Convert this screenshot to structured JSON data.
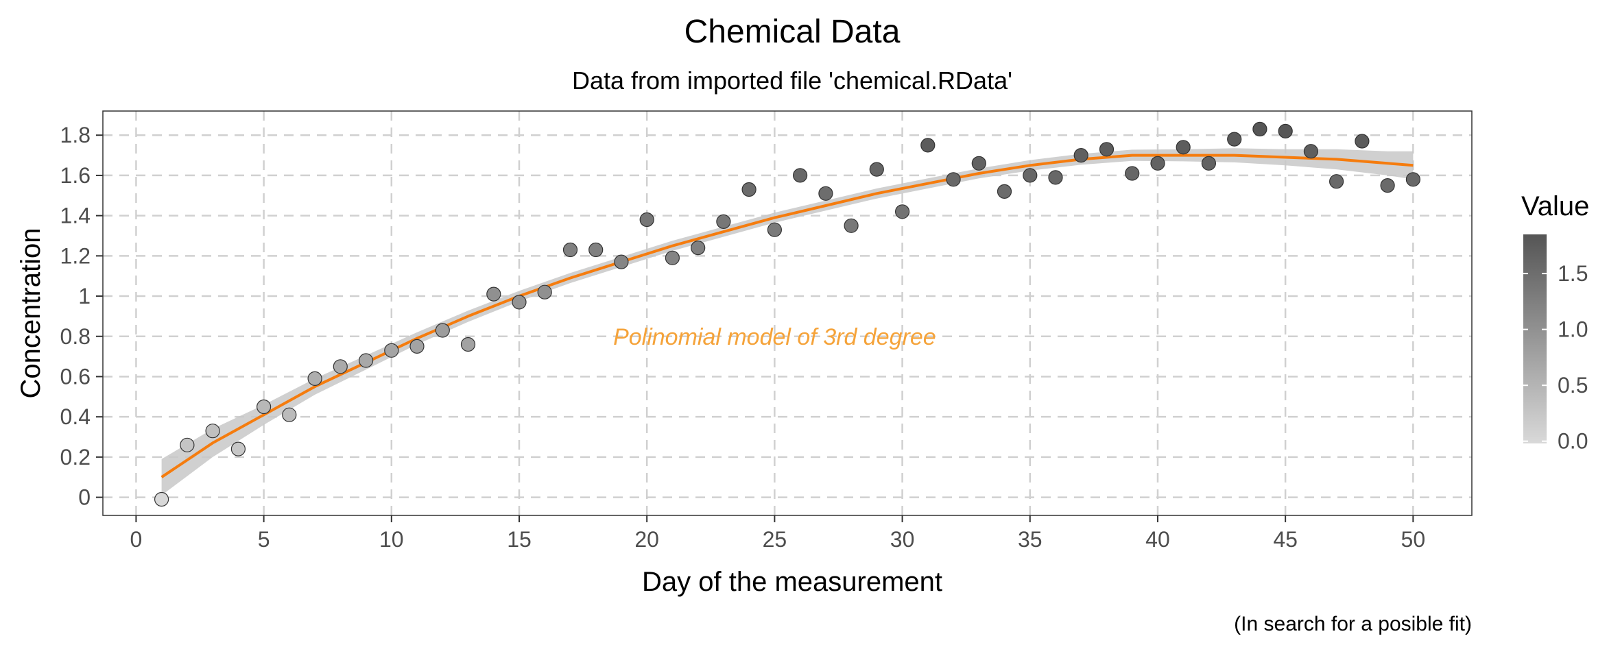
{
  "chart_data": {
    "type": "scatter",
    "title": "Chemical Data",
    "subtitle": "Data from imported file 'chemical.RData'",
    "xlabel": "Day of the measurement",
    "ylabel": "Concentration",
    "caption": "(In search for a posible fit)",
    "annotation": "Polinomial model of 3rd degree",
    "xlim": [
      -1.3,
      52.3
    ],
    "ylim": [
      -0.09,
      1.92
    ],
    "x_ticks": [
      0,
      5,
      10,
      15,
      20,
      25,
      30,
      35,
      40,
      45,
      50
    ],
    "y_ticks": [
      0,
      0.2,
      0.4,
      0.6,
      0.8,
      1,
      1.2,
      1.4,
      1.6,
      1.8
    ],
    "y_tick_labels": [
      "0",
      "0.2",
      "0.4",
      "0.6",
      "0.8",
      "1",
      "1.2",
      "1.4",
      "1.6",
      "1.8"
    ],
    "grid": true,
    "grid_style": "dashed",
    "legend": {
      "title": "Value",
      "placement": "right",
      "type": "colorbar",
      "ticks": [
        0.0,
        0.5,
        1.0,
        1.5
      ],
      "tick_labels": [
        "0.0",
        "0.5",
        "1.0",
        "1.5"
      ],
      "range": [
        -0.02,
        1.85
      ],
      "low_color": "#d9d9d9",
      "high_color": "#555555"
    },
    "points": {
      "x": [
        1,
        2,
        3,
        4,
        5,
        6,
        7,
        8,
        9,
        10,
        11,
        12,
        13,
        14,
        15,
        16,
        17,
        18,
        19,
        20,
        21,
        22,
        23,
        24,
        25,
        26,
        27,
        28,
        29,
        30,
        31,
        32,
        33,
        34,
        35,
        36,
        37,
        38,
        39,
        40,
        41,
        42,
        43,
        44,
        45,
        46,
        47,
        48,
        49,
        50
      ],
      "y": [
        -0.01,
        0.26,
        0.33,
        0.24,
        0.45,
        0.41,
        0.59,
        0.65,
        0.68,
        0.73,
        0.75,
        0.83,
        0.76,
        1.01,
        0.97,
        1.02,
        1.23,
        1.23,
        1.17,
        1.38,
        1.19,
        1.24,
        1.37,
        1.53,
        1.33,
        1.6,
        1.51,
        1.35,
        1.63,
        1.42,
        1.75,
        1.58,
        1.66,
        1.52,
        1.6,
        1.59,
        1.7,
        1.73,
        1.61,
        1.66,
        1.74,
        1.66,
        1.78,
        1.83,
        1.82,
        1.72,
        1.57,
        1.77,
        1.55,
        1.58
      ]
    },
    "fit": {
      "model": "cubic polynomial",
      "x": [
        1,
        3,
        5,
        7,
        9,
        11,
        13,
        15,
        17,
        19,
        21,
        23,
        25,
        27,
        29,
        31,
        33,
        35,
        37,
        39,
        41,
        43,
        45,
        47,
        49,
        50
      ],
      "y": [
        0.1,
        0.27,
        0.41,
        0.55,
        0.67,
        0.79,
        0.9,
        1.0,
        1.09,
        1.17,
        1.25,
        1.32,
        1.39,
        1.45,
        1.51,
        1.56,
        1.61,
        1.65,
        1.68,
        1.7,
        1.7,
        1.7,
        1.69,
        1.68,
        1.66,
        1.65
      ],
      "ci_half_width": [
        0.09,
        0.07,
        0.05,
        0.04,
        0.035,
        0.03,
        0.028,
        0.026,
        0.025,
        0.025,
        0.025,
        0.025,
        0.025,
        0.025,
        0.025,
        0.025,
        0.025,
        0.026,
        0.027,
        0.028,
        0.03,
        0.035,
        0.04,
        0.05,
        0.06,
        0.07
      ],
      "line_color": "#f57c0e",
      "band_color": "#c8c8c8"
    },
    "annotation_color": "#f5a33a",
    "annotation_x": 25,
    "annotation_y": 0.8
  }
}
